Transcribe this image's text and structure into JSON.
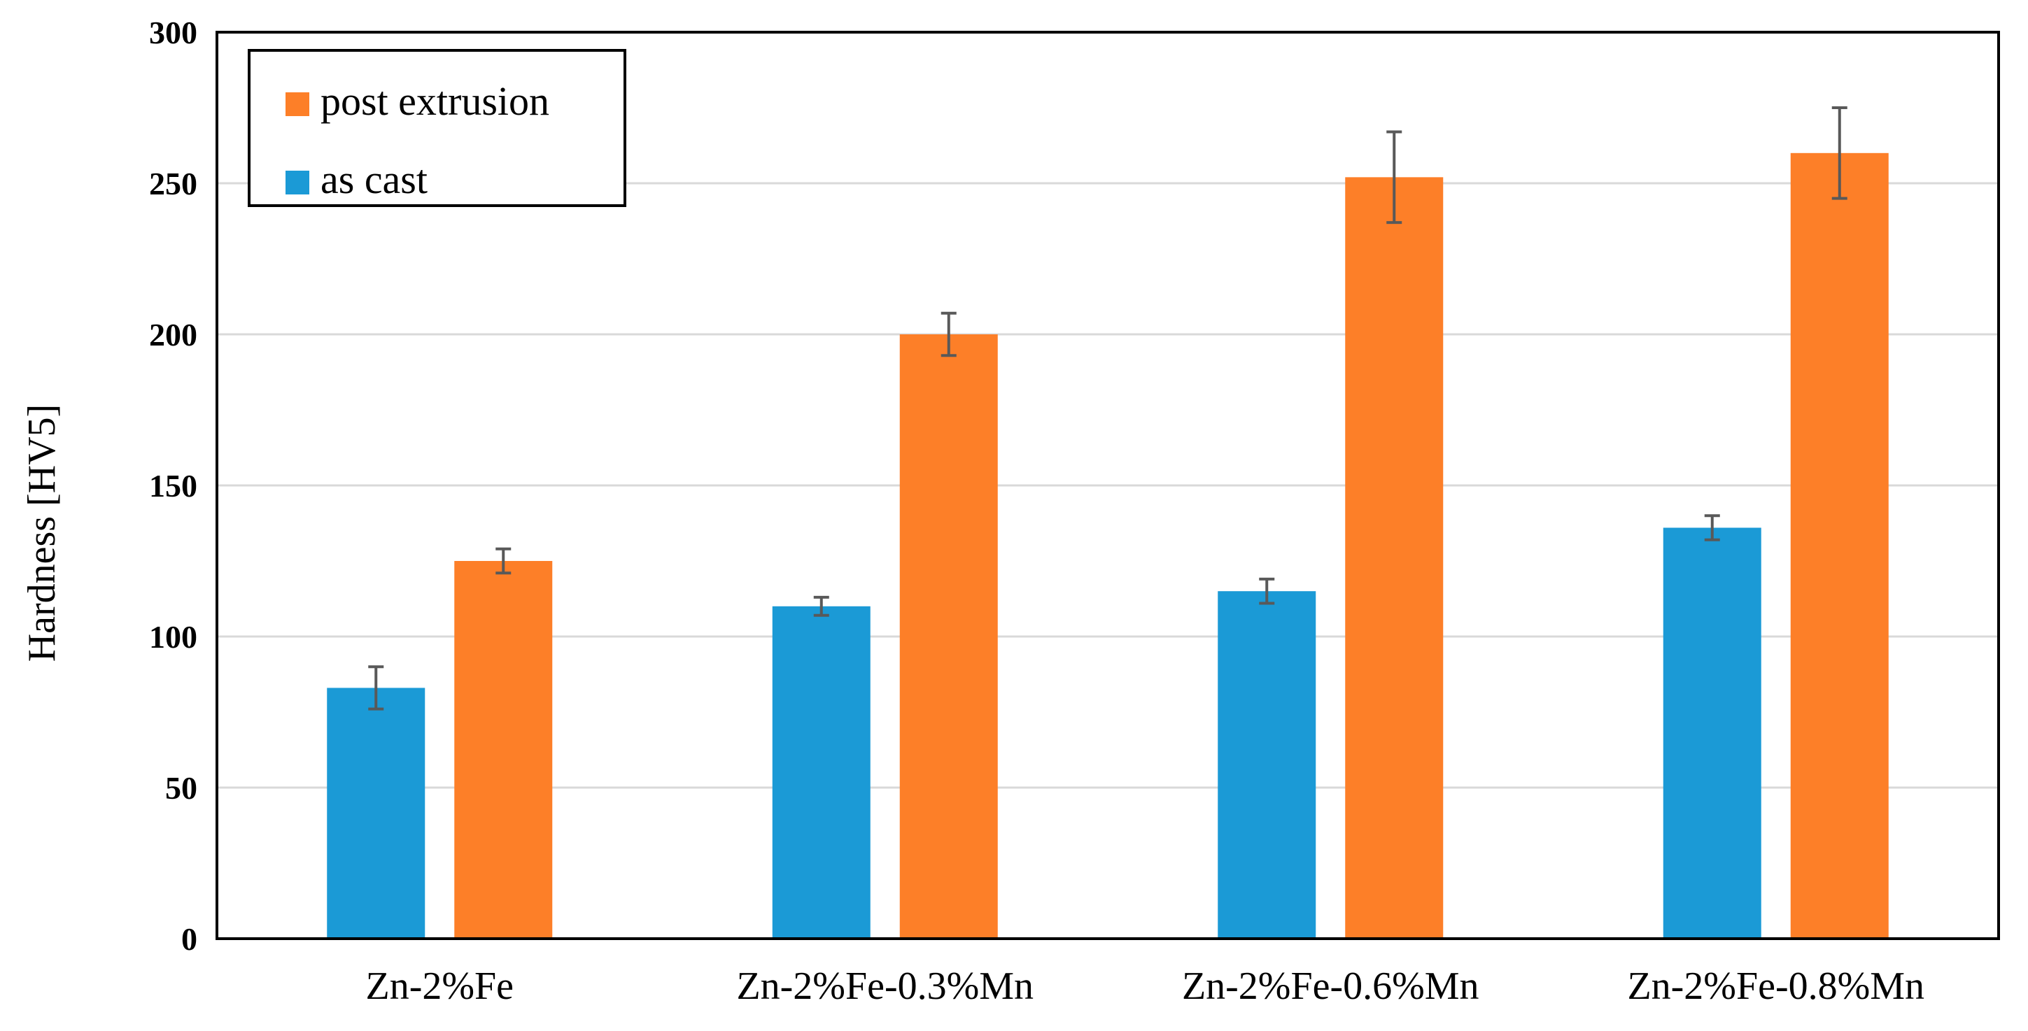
{
  "chart_data": {
    "type": "bar",
    "title": "",
    "xlabel": "",
    "ylabel": "Hardness  [HV5]",
    "ylim": [
      0,
      300
    ],
    "yticks": [
      0,
      50,
      100,
      150,
      200,
      250,
      300
    ],
    "grid": true,
    "legend_position": "top-left",
    "categories": [
      "Zn-2%Fe",
      "Zn-2%Fe-0.3%Mn",
      "Zn-2%Fe-0.6%Mn",
      "Zn-2%Fe-0.8%Mn"
    ],
    "series": [
      {
        "name": "as cast",
        "color": "#1b9ad6",
        "values": [
          83,
          110,
          115,
          136
        ],
        "errors": [
          7,
          3,
          4,
          4
        ]
      },
      {
        "name": "post extrusion",
        "color": "#fd7f28",
        "values": [
          125,
          200,
          252,
          260
        ],
        "errors": [
          4,
          7,
          15,
          15
        ]
      }
    ],
    "legend_order": [
      "post extrusion",
      "as cast"
    ]
  }
}
